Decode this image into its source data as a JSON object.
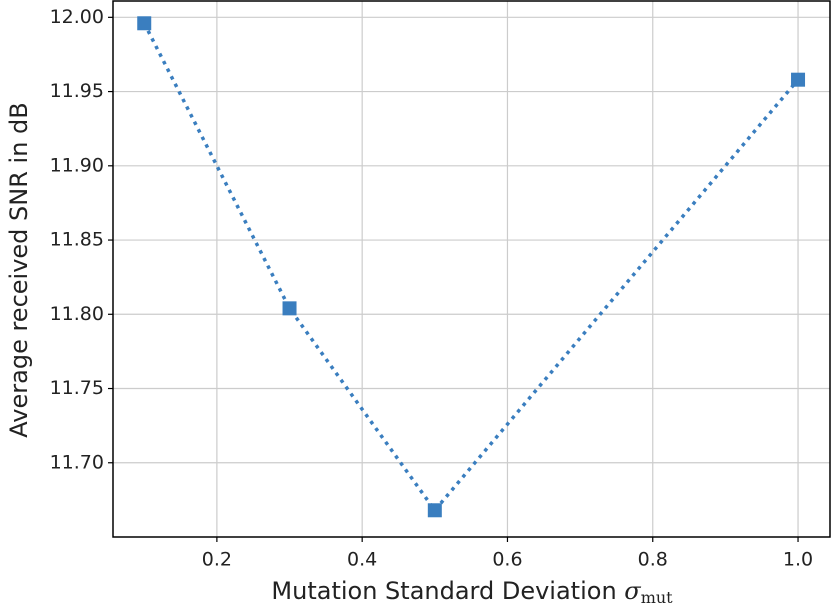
{
  "chart_data": {
    "type": "line",
    "x_label": "Mutation Standard Deviation",
    "x_label_symbol": "σ",
    "x_label_subscript": "mut",
    "y_label": "Average received SNR in dB",
    "series": [
      {
        "x": [
          0.1,
          0.3,
          0.5,
          1.0
        ],
        "values": [
          11.996,
          11.804,
          11.668,
          11.958
        ],
        "color": "#3a7ebf",
        "line_style": "dotted",
        "marker": "square"
      }
    ],
    "xlim": [
      0.057,
      1.044
    ],
    "xticks": [
      0.2,
      0.4,
      0.6,
      0.8,
      {
        "value": 1.0,
        "label": "1.0"
      }
    ],
    "ylim": [
      11.65,
      12.011
    ],
    "yticks": [
      {
        "value": 11.7,
        "label": "11.70"
      },
      11.75,
      {
        "value": 11.8,
        "label": "11.80"
      },
      11.85,
      {
        "value": 11.9,
        "label": "11.90"
      },
      11.95,
      {
        "value": 12.0,
        "label": "12.00"
      }
    ],
    "grid": true
  }
}
